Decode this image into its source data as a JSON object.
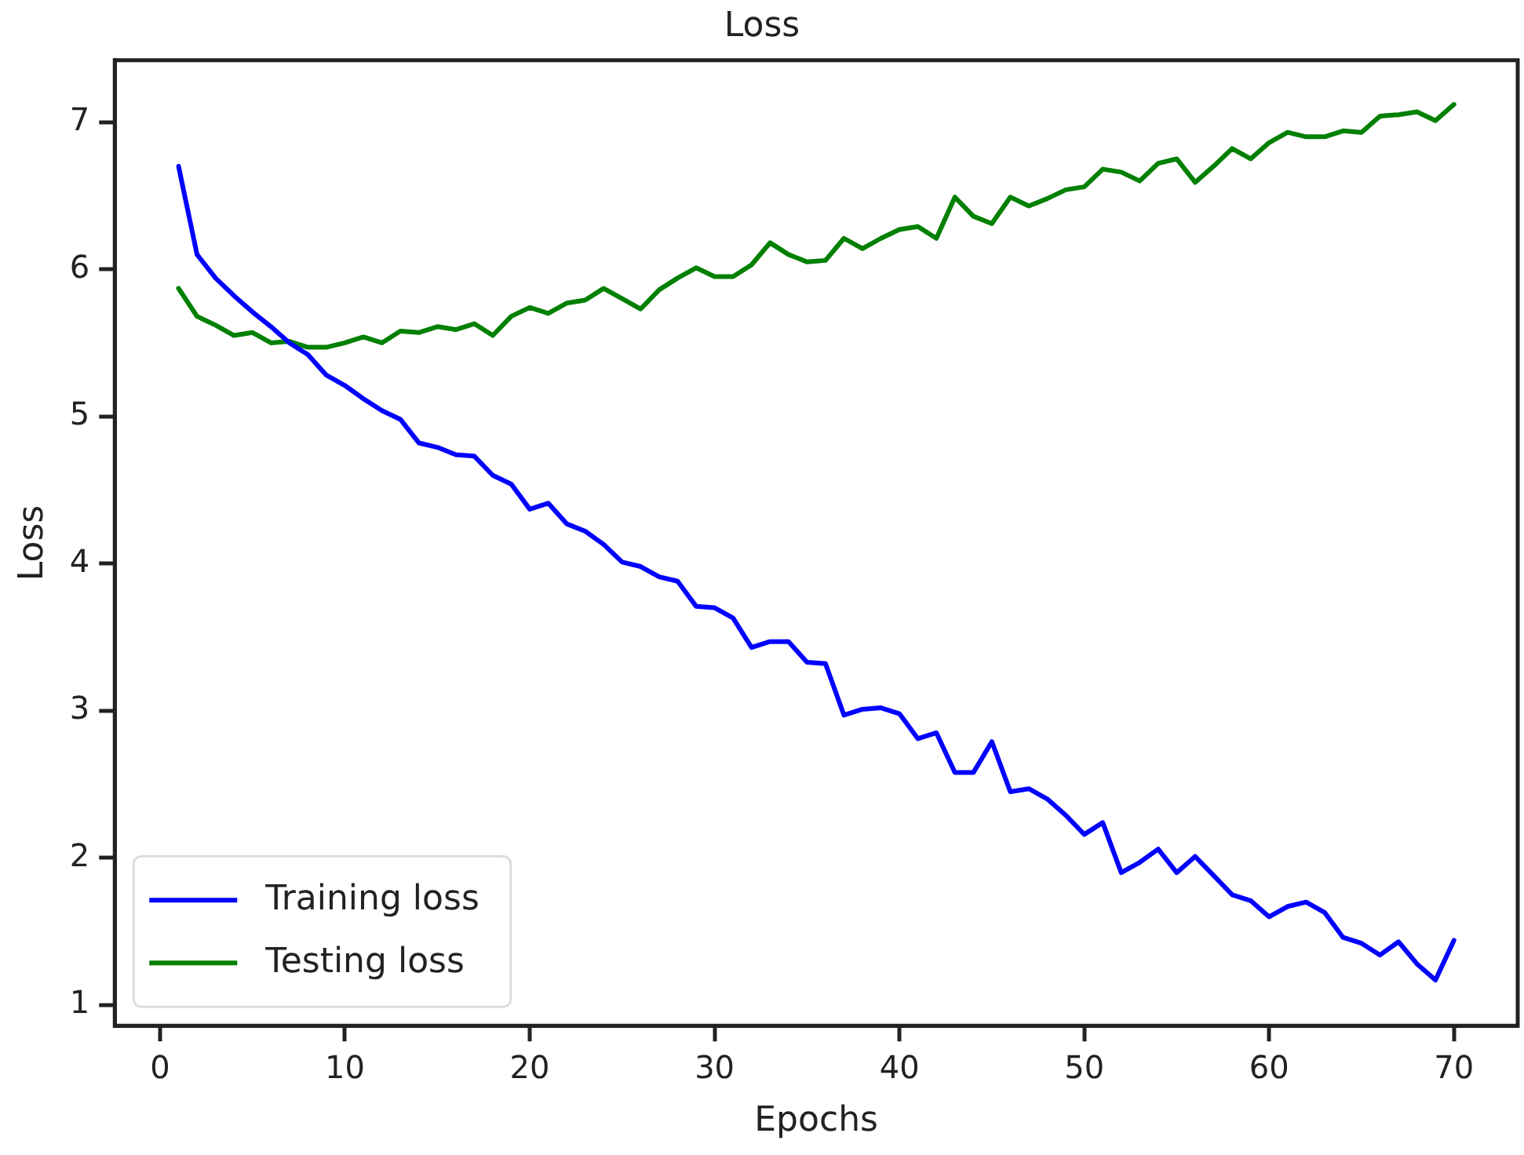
{
  "chart_data": {
    "type": "line",
    "title": "Loss",
    "xlabel": "Epochs",
    "ylabel": "Loss",
    "x": [
      1,
      2,
      3,
      4,
      5,
      6,
      7,
      8,
      9,
      10,
      11,
      12,
      13,
      14,
      15,
      16,
      17,
      18,
      19,
      20,
      21,
      22,
      23,
      24,
      25,
      26,
      27,
      28,
      29,
      30,
      31,
      32,
      33,
      34,
      35,
      36,
      37,
      38,
      39,
      40,
      41,
      42,
      43,
      44,
      45,
      46,
      47,
      48,
      49,
      50,
      51,
      52,
      53,
      54,
      55,
      56,
      57,
      58,
      59,
      60,
      61,
      62,
      63,
      64,
      65,
      66,
      67,
      68,
      69,
      70
    ],
    "series": [
      {
        "name": "Training loss",
        "color": "#0000ff",
        "values": [
          6.7,
          6.1,
          5.94,
          5.82,
          5.71,
          5.61,
          5.5,
          5.42,
          5.28,
          5.21,
          5.12,
          5.04,
          4.98,
          4.82,
          4.79,
          4.74,
          4.73,
          4.6,
          4.54,
          4.37,
          4.41,
          4.27,
          4.22,
          4.13,
          4.01,
          3.98,
          3.91,
          3.88,
          3.71,
          3.7,
          3.63,
          3.43,
          3.47,
          3.47,
          3.33,
          3.32,
          2.97,
          3.01,
          3.02,
          2.98,
          2.81,
          2.85,
          2.58,
          2.58,
          2.79,
          2.45,
          2.47,
          2.4,
          2.29,
          2.16,
          2.24,
          1.9,
          1.97,
          2.06,
          1.9,
          2.01,
          1.88,
          1.75,
          1.71,
          1.6,
          1.67,
          1.7,
          1.63,
          1.46,
          1.42,
          1.34,
          1.43,
          1.28,
          1.17,
          1.44
        ]
      },
      {
        "name": "Testing loss",
        "color": "#008000",
        "values": [
          5.87,
          5.68,
          5.62,
          5.55,
          5.57,
          5.5,
          5.51,
          5.47,
          5.47,
          5.5,
          5.54,
          5.5,
          5.58,
          5.57,
          5.61,
          5.59,
          5.63,
          5.55,
          5.68,
          5.74,
          5.7,
          5.77,
          5.79,
          5.87,
          5.8,
          5.73,
          5.86,
          5.94,
          6.01,
          5.95,
          5.95,
          6.03,
          6.18,
          6.1,
          6.05,
          6.06,
          6.21,
          6.14,
          6.21,
          6.27,
          6.29,
          6.21,
          6.49,
          6.36,
          6.31,
          6.49,
          6.43,
          6.48,
          6.54,
          6.56,
          6.68,
          6.66,
          6.6,
          6.72,
          6.75,
          6.59,
          6.7,
          6.82,
          6.75,
          6.86,
          6.93,
          6.9,
          6.9,
          6.94,
          6.93,
          7.04,
          7.05,
          7.07,
          7.01,
          7.12
        ]
      }
    ],
    "xlim": [
      -2.45,
      73.45
    ],
    "xticks": [
      0,
      10,
      20,
      30,
      40,
      50,
      60,
      70
    ],
    "ylim": [
      0.86,
      7.42
    ],
    "yticks": [
      1,
      2,
      3,
      4,
      5,
      6,
      7
    ],
    "grid": false,
    "legend": "bottom left",
    "marker": "none",
    "line_style": "solid"
  }
}
